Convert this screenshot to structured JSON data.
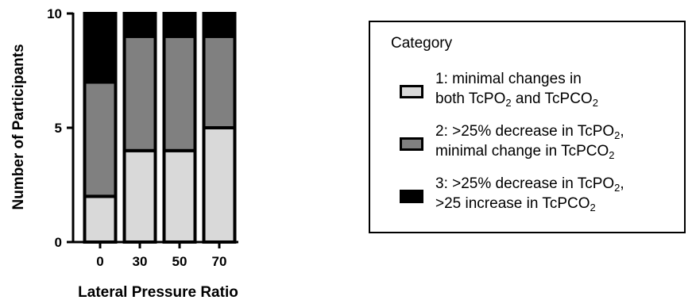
{
  "chart_data": {
    "type": "bar",
    "stacked": true,
    "categories": [
      "0",
      "30",
      "50",
      "70"
    ],
    "series": [
      {
        "name": "1: minimal changes in both TcPO2 and TcPCO2",
        "values": [
          2,
          4,
          4,
          5
        ],
        "color": "#d9d9d9"
      },
      {
        "name": "2: >25% decrease in TcPO2, minimal change in TcPCO2",
        "values": [
          5,
          5,
          5,
          4
        ],
        "color": "#808080"
      },
      {
        "name": "3: >25% decrease in TcPO2, >25 increase in TcPCO2",
        "values": [
          3,
          1,
          1,
          1
        ],
        "color": "#000000"
      }
    ],
    "xlabel": "Lateral Pressure Ratio",
    "ylabel": "Number of Participants",
    "ylim": [
      0,
      10
    ],
    "yticks": [
      "0",
      "5",
      "10"
    ],
    "grid": false,
    "legend_position": "right"
  },
  "legend": {
    "title": "Category",
    "items": [
      {
        "line1": "1: minimal changes in",
        "line2_pre": "both TcPO",
        "line2_sub1": "2",
        "line2_mid": " and TcPCO",
        "line2_sub2": "2",
        "color": "#d9d9d9"
      },
      {
        "line1_pre": "2: >25% decrease in TcPO",
        "line1_sub": "2",
        "line1_post": ",",
        "line2_pre": "minimal change in TcPCO",
        "line2_sub": "2",
        "color": "#808080"
      },
      {
        "line1_pre": "3: >25% decrease in TcPO",
        "line1_sub": "2",
        "line1_post": ",",
        "line2_pre": ">25 increase in TcPCO",
        "line2_sub": "2",
        "color": "#000000"
      }
    ]
  }
}
